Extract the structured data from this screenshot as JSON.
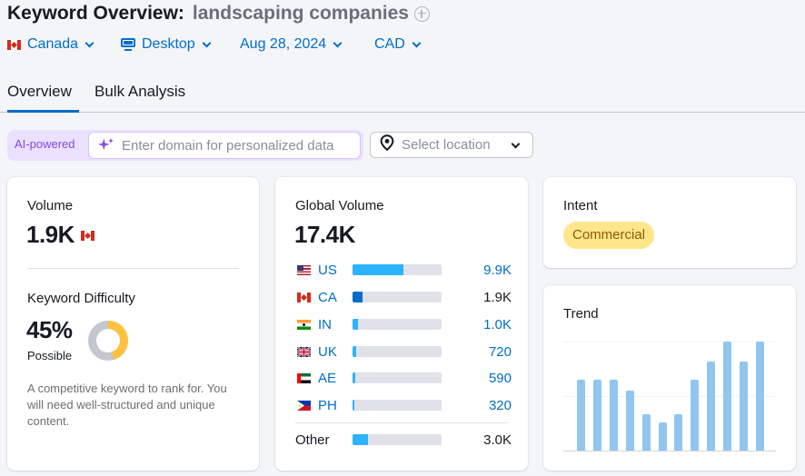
{
  "header": {
    "title": "Keyword Overview:",
    "keyword": "landscaping companies",
    "add_icon": "plus-circle-icon"
  },
  "filters": {
    "country": "Canada",
    "device": "Desktop",
    "date": "Aug 28, 2024",
    "currency": "CAD"
  },
  "tabs": [
    {
      "label": "Overview",
      "active": true
    },
    {
      "label": "Bulk Analysis",
      "active": false
    }
  ],
  "ai": {
    "label": "AI-powered",
    "domain_placeholder": "Enter domain for personalized data",
    "domain_value": "",
    "location_placeholder": "Select location"
  },
  "volume": {
    "label": "Volume",
    "value": "1.9K",
    "flag": "CA"
  },
  "keyword_difficulty": {
    "label": "Keyword Difficulty",
    "value": "45%",
    "percent": 45,
    "level": "Possible",
    "description": "A competitive keyword to rank for. You will need well-structured and unique content.",
    "colors": {
      "filled": "#ffc13e",
      "empty": "#c4c7cf"
    }
  },
  "global_volume": {
    "label": "Global Volume",
    "value": "17.4K",
    "rows": [
      {
        "code": "US",
        "value": "9.9K",
        "percent": 57,
        "fill": "#2bb3ff",
        "link": true
      },
      {
        "code": "CA",
        "value": "1.9K",
        "percent": 11,
        "fill": "#006dca",
        "link": false
      },
      {
        "code": "IN",
        "value": "1.0K",
        "percent": 6,
        "fill": "#2bb3ff",
        "link": true
      },
      {
        "code": "UK",
        "value": "720",
        "percent": 4,
        "fill": "#2bb3ff",
        "link": true
      },
      {
        "code": "AE",
        "value": "590",
        "percent": 3,
        "fill": "#2bb3ff",
        "link": true
      },
      {
        "code": "PH",
        "value": "320",
        "percent": 2,
        "fill": "#2bb3ff",
        "link": true
      }
    ],
    "other": {
      "label": "Other",
      "value": "3.0K",
      "percent": 17
    }
  },
  "intent": {
    "label": "Intent",
    "badge": "Commercial"
  },
  "trend": {
    "label": "Trend",
    "bars": [
      0.65,
      0.65,
      0.65,
      0.55,
      0.33,
      0.26,
      0.33,
      0.65,
      0.82,
      1.0,
      0.82,
      1.0
    ],
    "color": "#91c6ef"
  }
}
